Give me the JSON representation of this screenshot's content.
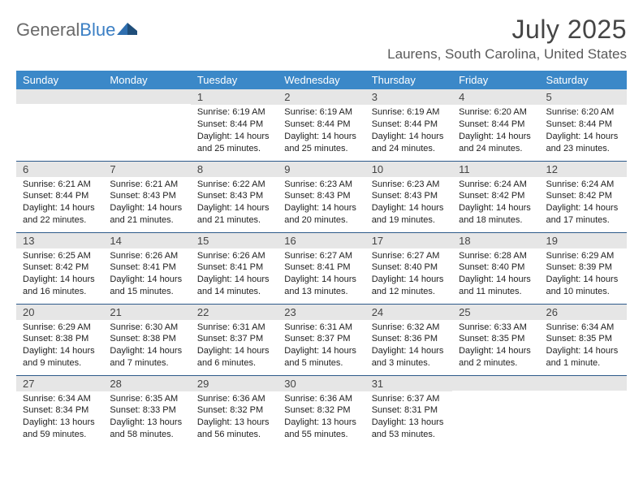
{
  "brand": {
    "name_gray": "General",
    "name_blue": "Blue"
  },
  "title": {
    "month": "July 2025",
    "location": "Laurens, South Carolina, United States"
  },
  "colors": {
    "header_bg": "#3b88c8",
    "header_text": "#ffffff",
    "daynum_bg": "#e6e6e6",
    "cell_border": "#2d5a8a",
    "body_text": "#222222",
    "title_text": "#454545",
    "logo_gray": "#6a6a6a",
    "logo_blue": "#3b7fc4"
  },
  "typography": {
    "month_title_size": 32,
    "location_size": 17,
    "dayheader_size": 13,
    "daynum_size": 13,
    "cell_size": 11
  },
  "day_headers": [
    "Sunday",
    "Monday",
    "Tuesday",
    "Wednesday",
    "Thursday",
    "Friday",
    "Saturday"
  ],
  "weeks": [
    [
      {
        "n": "",
        "sunrise": "",
        "sunset": "",
        "daylight": ""
      },
      {
        "n": "",
        "sunrise": "",
        "sunset": "",
        "daylight": ""
      },
      {
        "n": "1",
        "sunrise": "Sunrise: 6:19 AM",
        "sunset": "Sunset: 8:44 PM",
        "daylight": "Daylight: 14 hours and 25 minutes."
      },
      {
        "n": "2",
        "sunrise": "Sunrise: 6:19 AM",
        "sunset": "Sunset: 8:44 PM",
        "daylight": "Daylight: 14 hours and 25 minutes."
      },
      {
        "n": "3",
        "sunrise": "Sunrise: 6:19 AM",
        "sunset": "Sunset: 8:44 PM",
        "daylight": "Daylight: 14 hours and 24 minutes."
      },
      {
        "n": "4",
        "sunrise": "Sunrise: 6:20 AM",
        "sunset": "Sunset: 8:44 PM",
        "daylight": "Daylight: 14 hours and 24 minutes."
      },
      {
        "n": "5",
        "sunrise": "Sunrise: 6:20 AM",
        "sunset": "Sunset: 8:44 PM",
        "daylight": "Daylight: 14 hours and 23 minutes."
      }
    ],
    [
      {
        "n": "6",
        "sunrise": "Sunrise: 6:21 AM",
        "sunset": "Sunset: 8:44 PM",
        "daylight": "Daylight: 14 hours and 22 minutes."
      },
      {
        "n": "7",
        "sunrise": "Sunrise: 6:21 AM",
        "sunset": "Sunset: 8:43 PM",
        "daylight": "Daylight: 14 hours and 21 minutes."
      },
      {
        "n": "8",
        "sunrise": "Sunrise: 6:22 AM",
        "sunset": "Sunset: 8:43 PM",
        "daylight": "Daylight: 14 hours and 21 minutes."
      },
      {
        "n": "9",
        "sunrise": "Sunrise: 6:23 AM",
        "sunset": "Sunset: 8:43 PM",
        "daylight": "Daylight: 14 hours and 20 minutes."
      },
      {
        "n": "10",
        "sunrise": "Sunrise: 6:23 AM",
        "sunset": "Sunset: 8:43 PM",
        "daylight": "Daylight: 14 hours and 19 minutes."
      },
      {
        "n": "11",
        "sunrise": "Sunrise: 6:24 AM",
        "sunset": "Sunset: 8:42 PM",
        "daylight": "Daylight: 14 hours and 18 minutes."
      },
      {
        "n": "12",
        "sunrise": "Sunrise: 6:24 AM",
        "sunset": "Sunset: 8:42 PM",
        "daylight": "Daylight: 14 hours and 17 minutes."
      }
    ],
    [
      {
        "n": "13",
        "sunrise": "Sunrise: 6:25 AM",
        "sunset": "Sunset: 8:42 PM",
        "daylight": "Daylight: 14 hours and 16 minutes."
      },
      {
        "n": "14",
        "sunrise": "Sunrise: 6:26 AM",
        "sunset": "Sunset: 8:41 PM",
        "daylight": "Daylight: 14 hours and 15 minutes."
      },
      {
        "n": "15",
        "sunrise": "Sunrise: 6:26 AM",
        "sunset": "Sunset: 8:41 PM",
        "daylight": "Daylight: 14 hours and 14 minutes."
      },
      {
        "n": "16",
        "sunrise": "Sunrise: 6:27 AM",
        "sunset": "Sunset: 8:41 PM",
        "daylight": "Daylight: 14 hours and 13 minutes."
      },
      {
        "n": "17",
        "sunrise": "Sunrise: 6:27 AM",
        "sunset": "Sunset: 8:40 PM",
        "daylight": "Daylight: 14 hours and 12 minutes."
      },
      {
        "n": "18",
        "sunrise": "Sunrise: 6:28 AM",
        "sunset": "Sunset: 8:40 PM",
        "daylight": "Daylight: 14 hours and 11 minutes."
      },
      {
        "n": "19",
        "sunrise": "Sunrise: 6:29 AM",
        "sunset": "Sunset: 8:39 PM",
        "daylight": "Daylight: 14 hours and 10 minutes."
      }
    ],
    [
      {
        "n": "20",
        "sunrise": "Sunrise: 6:29 AM",
        "sunset": "Sunset: 8:38 PM",
        "daylight": "Daylight: 14 hours and 9 minutes."
      },
      {
        "n": "21",
        "sunrise": "Sunrise: 6:30 AM",
        "sunset": "Sunset: 8:38 PM",
        "daylight": "Daylight: 14 hours and 7 minutes."
      },
      {
        "n": "22",
        "sunrise": "Sunrise: 6:31 AM",
        "sunset": "Sunset: 8:37 PM",
        "daylight": "Daylight: 14 hours and 6 minutes."
      },
      {
        "n": "23",
        "sunrise": "Sunrise: 6:31 AM",
        "sunset": "Sunset: 8:37 PM",
        "daylight": "Daylight: 14 hours and 5 minutes."
      },
      {
        "n": "24",
        "sunrise": "Sunrise: 6:32 AM",
        "sunset": "Sunset: 8:36 PM",
        "daylight": "Daylight: 14 hours and 3 minutes."
      },
      {
        "n": "25",
        "sunrise": "Sunrise: 6:33 AM",
        "sunset": "Sunset: 8:35 PM",
        "daylight": "Daylight: 14 hours and 2 minutes."
      },
      {
        "n": "26",
        "sunrise": "Sunrise: 6:34 AM",
        "sunset": "Sunset: 8:35 PM",
        "daylight": "Daylight: 14 hours and 1 minute."
      }
    ],
    [
      {
        "n": "27",
        "sunrise": "Sunrise: 6:34 AM",
        "sunset": "Sunset: 8:34 PM",
        "daylight": "Daylight: 13 hours and 59 minutes."
      },
      {
        "n": "28",
        "sunrise": "Sunrise: 6:35 AM",
        "sunset": "Sunset: 8:33 PM",
        "daylight": "Daylight: 13 hours and 58 minutes."
      },
      {
        "n": "29",
        "sunrise": "Sunrise: 6:36 AM",
        "sunset": "Sunset: 8:32 PM",
        "daylight": "Daylight: 13 hours and 56 minutes."
      },
      {
        "n": "30",
        "sunrise": "Sunrise: 6:36 AM",
        "sunset": "Sunset: 8:32 PM",
        "daylight": "Daylight: 13 hours and 55 minutes."
      },
      {
        "n": "31",
        "sunrise": "Sunrise: 6:37 AM",
        "sunset": "Sunset: 8:31 PM",
        "daylight": "Daylight: 13 hours and 53 minutes."
      },
      {
        "n": "",
        "sunrise": "",
        "sunset": "",
        "daylight": ""
      },
      {
        "n": "",
        "sunrise": "",
        "sunset": "",
        "daylight": ""
      }
    ]
  ]
}
